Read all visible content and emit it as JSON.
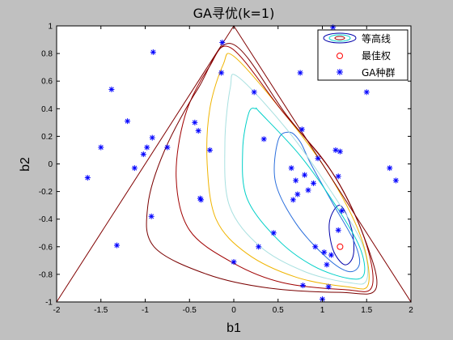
{
  "chart_data": {
    "type": "scatter",
    "title": "GA寻优(k=1)",
    "xlabel": "b1",
    "ylabel": "b2",
    "xlim": [
      -2,
      2
    ],
    "ylim": [
      -1,
      1
    ],
    "xticks": [
      "-2",
      "-1.5",
      "-1",
      "-0.5",
      "0",
      "0.5",
      "1",
      "1.5",
      "2"
    ],
    "yticks": [
      "-1",
      "-0.8",
      "-0.6",
      "-0.4",
      "-0.2",
      "0",
      "0.2",
      "0.4",
      "0.6",
      "0.8",
      "1"
    ],
    "grid": false,
    "legend_position": "top-right",
    "legend": [
      "等高线",
      "最佳权",
      "GA种群"
    ],
    "colors": {
      "figure_background": "#c0c0c0",
      "axes_background": "#ffffff",
      "boundary": "#800000",
      "optimum_marker": "#ff0000",
      "population_marker": "#0000ff"
    },
    "boundary_triangle": [
      [
        -2,
        -1
      ],
      [
        0,
        1
      ],
      [
        2,
        -1
      ]
    ],
    "optimum": {
      "x": 1.2,
      "y": -0.6
    },
    "contour_levels": [
      {
        "color": "#0000aa",
        "points": [
          [
            1.2,
            -0.3
          ],
          [
            1.33,
            -0.47
          ],
          [
            1.35,
            -0.66
          ],
          [
            1.25,
            -0.73
          ],
          [
            1.12,
            -0.62
          ],
          [
            1.08,
            -0.42
          ]
        ]
      },
      {
        "color": "#2a6edc",
        "points": [
          [
            0.87,
            0.0
          ],
          [
            1.13,
            -0.3
          ],
          [
            1.35,
            -0.55
          ],
          [
            1.42,
            -0.72
          ],
          [
            1.3,
            -0.78
          ],
          [
            1.05,
            -0.68
          ],
          [
            0.7,
            -0.43
          ],
          [
            0.47,
            -0.13
          ],
          [
            0.5,
            0.17
          ],
          [
            0.63,
            0.23
          ],
          [
            0.75,
            0.16
          ]
        ]
      },
      {
        "color": "#00d0c8",
        "points": [
          [
            0.3,
            0.37
          ],
          [
            0.75,
            0.06
          ],
          [
            1.15,
            -0.3
          ],
          [
            1.42,
            -0.6
          ],
          [
            1.47,
            -0.8
          ],
          [
            1.3,
            -0.83
          ],
          [
            0.9,
            -0.74
          ],
          [
            0.5,
            -0.55
          ],
          [
            0.15,
            -0.25
          ],
          [
            0.1,
            0.1
          ],
          [
            0.17,
            0.37
          ],
          [
            0.25,
            0.4
          ]
        ]
      },
      {
        "color": "#a8e0e0",
        "points": [
          [
            0.05,
            0.63
          ],
          [
            0.6,
            0.25
          ],
          [
            1.1,
            -0.2
          ],
          [
            1.45,
            -0.58
          ],
          [
            1.5,
            -0.84
          ],
          [
            1.3,
            -0.86
          ],
          [
            0.8,
            -0.78
          ],
          [
            0.3,
            -0.6
          ],
          [
            -0.05,
            -0.3
          ],
          [
            -0.1,
            0.15
          ],
          [
            -0.04,
            0.55
          ]
        ]
      },
      {
        "color": "#f0b400",
        "points": [
          [
            0.0,
            0.78
          ],
          [
            0.5,
            0.42
          ],
          [
            1.05,
            -0.05
          ],
          [
            1.43,
            -0.52
          ],
          [
            1.52,
            -0.87
          ],
          [
            1.28,
            -0.89
          ],
          [
            0.7,
            -0.82
          ],
          [
            0.15,
            -0.65
          ],
          [
            -0.2,
            -0.4
          ],
          [
            -0.3,
            -0.0
          ],
          [
            -0.27,
            0.4
          ],
          [
            -0.12,
            0.72
          ]
        ]
      },
      {
        "color": "#a00000",
        "points": [
          [
            -0.03,
            0.84
          ],
          [
            0.55,
            0.38
          ],
          [
            1.1,
            -0.05
          ],
          [
            1.47,
            -0.53
          ],
          [
            1.56,
            -0.89
          ],
          [
            1.25,
            -0.91
          ],
          [
            0.55,
            -0.86
          ],
          [
            0.0,
            -0.72
          ],
          [
            -0.5,
            -0.48
          ],
          [
            -0.65,
            -0.1
          ],
          [
            -0.55,
            0.35
          ],
          [
            -0.28,
            0.7
          ]
        ]
      },
      {
        "color": "#7a0000",
        "points": [
          [
            -0.02,
            0.87
          ],
          [
            0.6,
            0.35
          ],
          [
            1.15,
            -0.1
          ],
          [
            1.5,
            -0.58
          ],
          [
            1.6,
            -0.91
          ],
          [
            1.2,
            -0.93
          ],
          [
            0.4,
            -0.9
          ],
          [
            -0.3,
            -0.8
          ],
          [
            -0.9,
            -0.6
          ],
          [
            -0.97,
            -0.3
          ],
          [
            -0.78,
            0.1
          ],
          [
            -0.4,
            0.55
          ]
        ]
      }
    ],
    "population": [
      {
        "x": -1.65,
        "y": -0.1
      },
      {
        "x": -1.5,
        "y": 0.12
      },
      {
        "x": -1.38,
        "y": 0.54
      },
      {
        "x": -1.32,
        "y": -0.59
      },
      {
        "x": -1.2,
        "y": 0.31
      },
      {
        "x": -1.12,
        "y": -0.03
      },
      {
        "x": -1.02,
        "y": 0.07
      },
      {
        "x": -0.98,
        "y": 0.12
      },
      {
        "x": -0.92,
        "y": 0.19
      },
      {
        "x": -0.93,
        "y": -0.38
      },
      {
        "x": -0.91,
        "y": 0.81
      },
      {
        "x": -0.75,
        "y": 0.12
      },
      {
        "x": -0.44,
        "y": 0.3
      },
      {
        "x": -0.4,
        "y": 0.24
      },
      {
        "x": -0.38,
        "y": -0.25
      },
      {
        "x": -0.37,
        "y": -0.26
      },
      {
        "x": -0.27,
        "y": 0.1
      },
      {
        "x": -0.13,
        "y": 0.88
      },
      {
        "x": -0.14,
        "y": 0.66
      },
      {
        "x": 0.0,
        "y": -0.71
      },
      {
        "x": 0.23,
        "y": 0.52
      },
      {
        "x": 0.28,
        "y": -0.6
      },
      {
        "x": 0.34,
        "y": 0.18
      },
      {
        "x": 0.45,
        "y": -0.5
      },
      {
        "x": 0.65,
        "y": -0.03
      },
      {
        "x": 0.67,
        "y": -0.26
      },
      {
        "x": 0.7,
        "y": -0.12
      },
      {
        "x": 0.72,
        "y": -0.22
      },
      {
        "x": 0.75,
        "y": 0.66
      },
      {
        "x": 0.77,
        "y": 0.25
      },
      {
        "x": 0.78,
        "y": -0.88
      },
      {
        "x": 0.8,
        "y": -0.08
      },
      {
        "x": 0.84,
        "y": -0.19
      },
      {
        "x": 0.9,
        "y": -0.14
      },
      {
        "x": 0.92,
        "y": -0.6
      },
      {
        "x": 0.95,
        "y": 0.04
      },
      {
        "x": 1.0,
        "y": -0.98
      },
      {
        "x": 1.02,
        "y": -0.64
      },
      {
        "x": 1.05,
        "y": -0.73
      },
      {
        "x": 1.07,
        "y": -0.89
      },
      {
        "x": 1.1,
        "y": -0.66
      },
      {
        "x": 1.12,
        "y": 0.99
      },
      {
        "x": 1.15,
        "y": 0.1
      },
      {
        "x": 1.18,
        "y": -0.09
      },
      {
        "x": 1.2,
        "y": 0.09
      },
      {
        "x": 1.5,
        "y": 0.52
      },
      {
        "x": 1.76,
        "y": -0.03
      },
      {
        "x": 1.83,
        "y": -0.12
      },
      {
        "x": 1.18,
        "y": -0.48
      },
      {
        "x": 1.22,
        "y": -0.34
      }
    ]
  }
}
